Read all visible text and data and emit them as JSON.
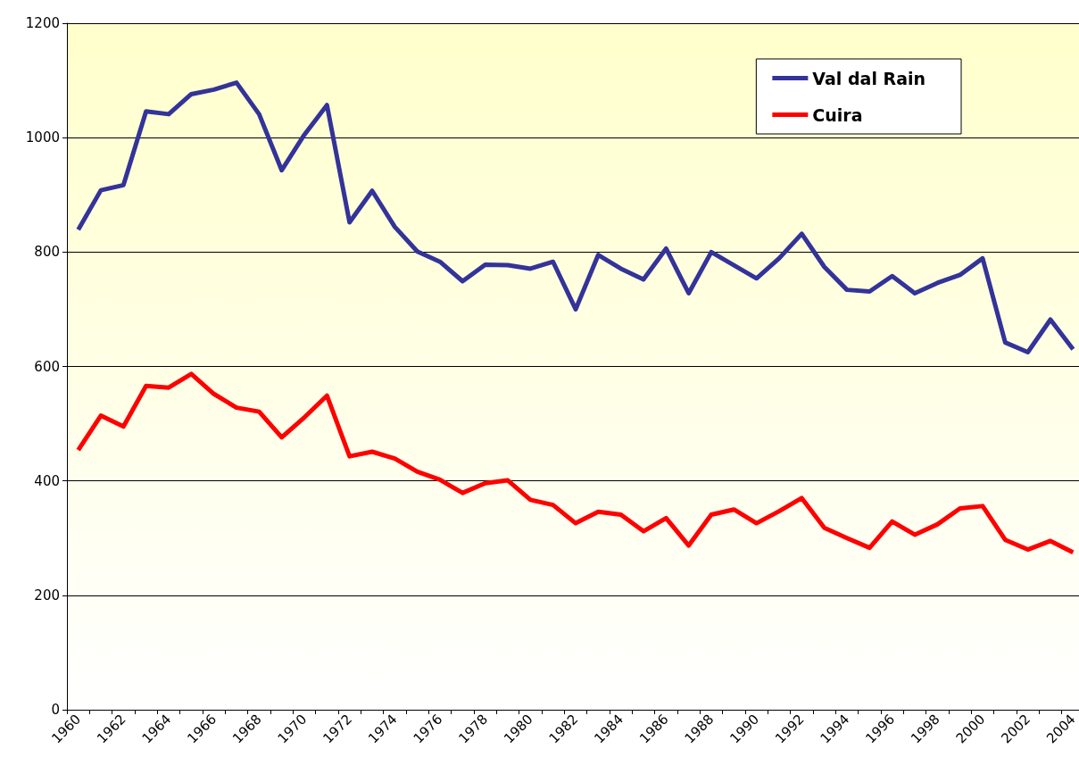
{
  "chart_data": {
    "type": "line",
    "categories": [
      "1960",
      null,
      "1962",
      null,
      "1964",
      null,
      "1966",
      null,
      "1968",
      null,
      "1970",
      null,
      "1972",
      null,
      "1974",
      null,
      "1976",
      null,
      "1978",
      null,
      "1980",
      null,
      "1982",
      null,
      "1984",
      null,
      "1986",
      null,
      "1988",
      null,
      "1990",
      null,
      "1992",
      null,
      "1994",
      null,
      "1996",
      null,
      "1998",
      null,
      "2000",
      null,
      "2002",
      null,
      "2004"
    ],
    "series": [
      {
        "name": "Val dal Rain",
        "color": "#333399",
        "values": [
          839,
          908,
          917,
          1046,
          1041,
          1076,
          1084,
          1096,
          1041,
          943,
          1005,
          1057,
          852,
          907,
          844,
          801,
          783,
          749,
          778,
          777,
          771,
          783,
          700,
          795,
          771,
          752,
          806,
          728,
          800,
          777,
          754,
          789,
          832,
          774,
          734,
          731,
          758,
          728,
          746,
          760,
          789,
          642,
          625,
          682,
          630
        ]
      },
      {
        "name": "Cuira",
        "color": "#ff0000",
        "values": [
          454,
          514,
          495,
          566,
          563,
          587,
          552,
          528,
          521,
          476,
          511,
          549,
          443,
          451,
          439,
          416,
          402,
          379,
          396,
          401,
          367,
          358,
          326,
          346,
          341,
          312,
          335,
          287,
          341,
          350,
          326,
          347,
          370,
          318,
          300,
          283,
          329,
          306,
          324,
          352,
          356,
          297,
          280,
          295,
          275
        ]
      }
    ],
    "ylim": [
      0,
      1200
    ],
    "yticks": [
      0,
      200,
      400,
      600,
      800,
      1000,
      1200
    ],
    "grid": "y",
    "legend": "top right",
    "marker": "none",
    "line_style": "solid"
  }
}
